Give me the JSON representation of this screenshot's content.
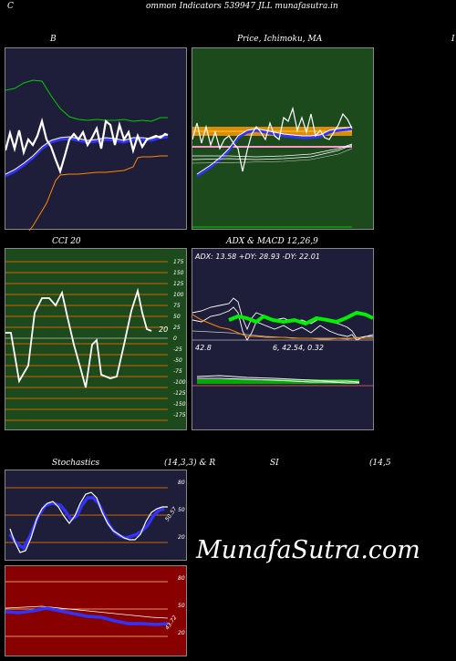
{
  "header": {
    "title": "ommon  Indicators 539947 JLL  munafasutra.in",
    "left_glyph": "C"
  },
  "panels": {
    "bollinger": {
      "title": "B",
      "colors": {
        "bg": "#1e1e3a",
        "upper": "#00cc00",
        "price": "#ffffff",
        "middle": "#3333ff",
        "lower": "#ff8800"
      }
    },
    "price_ma": {
      "title": "Price,  Ichimoku,  MA",
      "edge_glyph": "I",
      "colors": {
        "bg": "#1c4a1c",
        "ma_fast": "#ff9900",
        "ma_slow": "#3333ff",
        "pink": "#ff99cc"
      }
    },
    "cci": {
      "title": "CCI 20",
      "current": "20",
      "ticks": [
        "175",
        "150",
        "125",
        "100",
        "75",
        "50",
        "25",
        "0",
        "-25",
        "-50",
        "-75",
        "-100",
        "-125",
        "-150",
        "-175"
      ],
      "colors": {
        "bg": "#1c4a1c",
        "line": "#ffffff",
        "grid": "#cc6600"
      }
    },
    "adx_macd": {
      "title": "ADX  & MACD 12,26,9",
      "adx_label": "ADX: 13.58  +DY: 28.93 -DY: 22.01",
      "macd_left": "42.8",
      "macd_right": "6,  42.54,  0.32",
      "colors": {
        "bg": "#1e1e3a",
        "adx": "#00ee00",
        "plus_di": "#ffffff",
        "minus_di": "#ff8800"
      }
    },
    "stochastics": {
      "title_left": "Stochastics",
      "title_mid": "(14,3,3) & R",
      "title_rsi": "SI",
      "title_right": "(14,5",
      "ticks": [
        "80",
        "50",
        "20"
      ],
      "current": "50.57",
      "colors": {
        "bg": "#1e1e3a",
        "k": "#ffffff",
        "d": "#3333ff",
        "grid": "#cc6600"
      }
    },
    "rsi": {
      "ticks": [
        "80",
        "50",
        "20"
      ],
      "current": "43.72",
      "colors": {
        "bg": "#880000",
        "line": "#3333ff",
        "grid": "#ffcc66"
      }
    }
  },
  "watermark": "MunafaSutra.com"
}
